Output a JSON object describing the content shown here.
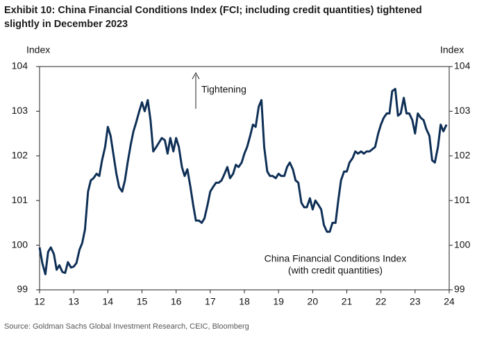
{
  "chart_data": {
    "type": "line",
    "title": "Exhibit 10: China Financial Conditions Index (FCI; including credit quantities) tightened slightly in December 2023",
    "y_label": "Index",
    "y2_label": "Index",
    "annotations": [
      "Tightening",
      "China Financial Conditions Index",
      "(with credit quantities)"
    ],
    "source": "Source: Goldman Sachs Global Investment Research, CEIC, Bloomberg",
    "xlim": [
      12,
      24
    ],
    "xticks": [
      12,
      13,
      14,
      15,
      16,
      17,
      18,
      19,
      20,
      21,
      22,
      23,
      24
    ],
    "ylim": [
      99,
      104
    ],
    "yticks": [
      99,
      100,
      101,
      102,
      103,
      104
    ],
    "y2lim": [
      99,
      104
    ],
    "y2ticks": [
      99,
      100,
      101,
      102,
      103,
      104
    ],
    "x": [
      12,
      12.08,
      12.17,
      12.25,
      12.33,
      12.42,
      12.5,
      12.58,
      12.67,
      12.75,
      12.83,
      12.92,
      13,
      13.08,
      13.17,
      13.25,
      13.33,
      13.42,
      13.5,
      13.58,
      13.67,
      13.75,
      13.83,
      13.92,
      14,
      14.08,
      14.17,
      14.25,
      14.33,
      14.42,
      14.5,
      14.58,
      14.67,
      14.75,
      14.83,
      14.92,
      15,
      15.08,
      15.17,
      15.25,
      15.33,
      15.42,
      15.5,
      15.58,
      15.67,
      15.75,
      15.83,
      15.92,
      16,
      16.08,
      16.17,
      16.25,
      16.33,
      16.42,
      16.5,
      16.58,
      16.67,
      16.75,
      16.83,
      16.92,
      17,
      17.08,
      17.17,
      17.25,
      17.33,
      17.42,
      17.5,
      17.58,
      17.67,
      17.75,
      17.83,
      17.92,
      18,
      18.08,
      18.17,
      18.25,
      18.33,
      18.42,
      18.5,
      18.58,
      18.67,
      18.75,
      18.83,
      18.92,
      19,
      19.08,
      19.17,
      19.25,
      19.33,
      19.42,
      19.5,
      19.58,
      19.67,
      19.75,
      19.83,
      19.92,
      20,
      20.08,
      20.17,
      20.25,
      20.33,
      20.42,
      20.5,
      20.58,
      20.67,
      20.75,
      20.83,
      20.92,
      21,
      21.08,
      21.17,
      21.25,
      21.33,
      21.42,
      21.5,
      21.58,
      21.67,
      21.75,
      21.83,
      21.92,
      22,
      22.08,
      22.17,
      22.25,
      22.33,
      22.42,
      22.5,
      22.58,
      22.67,
      22.75,
      22.83,
      22.92,
      23,
      23.08,
      23.17,
      23.25,
      23.33,
      23.42,
      23.5,
      23.58,
      23.67,
      23.75,
      23.83,
      23.92
    ],
    "series": [
      {
        "color": "#0e2f56",
        "values": [
          99.95,
          99.6,
          99.35,
          99.85,
          99.95,
          99.8,
          99.45,
          99.55,
          99.4,
          99.38,
          99.62,
          99.5,
          99.52,
          99.6,
          99.9,
          100.05,
          100.35,
          101.2,
          101.45,
          101.5,
          101.6,
          101.55,
          101.9,
          102.2,
          102.65,
          102.45,
          102.0,
          101.6,
          101.3,
          101.2,
          101.45,
          101.85,
          102.25,
          102.55,
          102.75,
          103.0,
          103.2,
          103.0,
          103.25,
          102.8,
          102.1,
          102.2,
          102.3,
          102.4,
          102.35,
          102.05,
          102.4,
          102.1,
          102.4,
          102.2,
          101.75,
          101.55,
          101.7,
          101.3,
          100.9,
          100.55,
          100.55,
          100.5,
          100.6,
          100.9,
          101.2,
          101.3,
          101.4,
          101.4,
          101.45,
          101.6,
          101.75,
          101.5,
          101.6,
          101.8,
          101.75,
          101.85,
          102.05,
          102.2,
          102.45,
          102.7,
          102.65,
          103.1,
          103.25,
          102.2,
          101.65,
          101.55,
          101.55,
          101.5,
          101.6,
          101.55,
          101.55,
          101.75,
          101.85,
          101.7,
          101.45,
          101.4,
          100.95,
          100.85,
          100.85,
          101.05,
          100.8,
          101.0,
          100.9,
          100.8,
          100.45,
          100.3,
          100.3,
          100.5,
          100.5,
          101.0,
          101.45,
          101.65,
          101.65,
          101.85,
          101.95,
          102.1,
          102.05,
          102.1,
          102.05,
          102.1,
          102.1,
          102.15,
          102.2,
          102.5,
          102.7,
          102.85,
          102.95,
          102.95,
          103.45,
          103.5,
          102.9,
          102.95,
          103.3,
          102.95,
          102.95,
          102.8,
          102.5,
          102.95,
          102.85,
          102.8,
          102.6,
          102.45,
          101.9,
          101.85,
          102.2,
          102.7,
          102.55,
          102.7
        ]
      }
    ]
  }
}
